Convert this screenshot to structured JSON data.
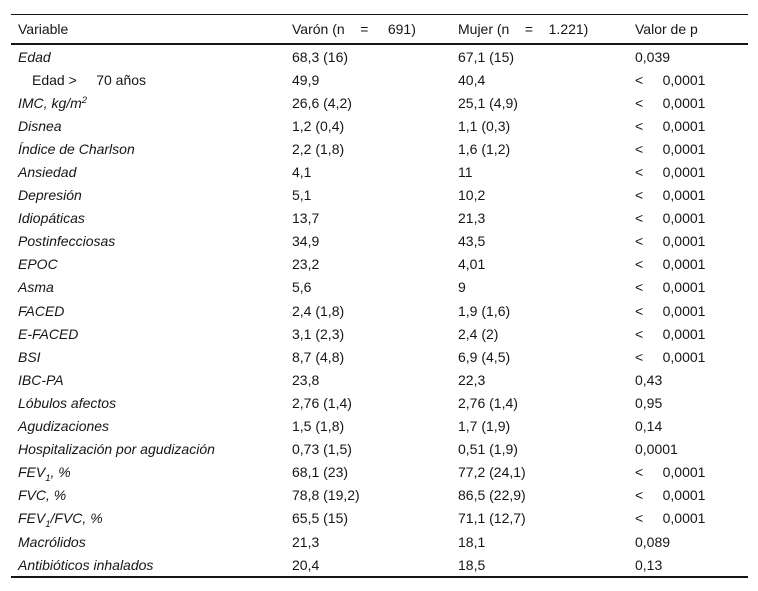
{
  "colors": {
    "ink": "#161616",
    "background": "#ffffff"
  },
  "table": {
    "columns": [
      {
        "label": "Variable"
      },
      {
        "label": "Varón (n    =     691)"
      },
      {
        "label": "Mujer (n    =    1.221)"
      },
      {
        "label": "Valor de p"
      }
    ],
    "rows": [
      {
        "segments": [
          {
            "t": "Edad"
          }
        ],
        "italic": true,
        "indent": false,
        "varon": "68,3 (16)",
        "mujer": "67,1 (15)",
        "p": "0,039"
      },
      {
        "segments": [
          {
            "t": "Edad >     70 años"
          }
        ],
        "italic": false,
        "indent": true,
        "varon": "49,9",
        "mujer": "40,4",
        "p": "<     0,0001"
      },
      {
        "segments": [
          {
            "t": "IMC, kg/m"
          },
          {
            "t": "2",
            "pos": "sup"
          }
        ],
        "italic": true,
        "indent": false,
        "varon": "26,6 (4,2)",
        "mujer": "25,1 (4,9)",
        "p": "<     0,0001"
      },
      {
        "segments": [
          {
            "t": "Disnea"
          }
        ],
        "italic": true,
        "indent": false,
        "varon": "1,2 (0,4)",
        "mujer": "1,1 (0,3)",
        "p": "<     0,0001"
      },
      {
        "segments": [
          {
            "t": "Índice de Charlson"
          }
        ],
        "italic": true,
        "indent": false,
        "varon": "2,2 (1,8)",
        "mujer": "1,6 (1,2)",
        "p": "<     0,0001"
      },
      {
        "segments": [
          {
            "t": "Ansiedad"
          }
        ],
        "italic": true,
        "indent": false,
        "varon": "4,1",
        "mujer": "11",
        "p": "<     0,0001"
      },
      {
        "segments": [
          {
            "t": "Depresión"
          }
        ],
        "italic": true,
        "indent": false,
        "varon": "5,1",
        "mujer": "10,2",
        "p": "<     0,0001"
      },
      {
        "segments": [
          {
            "t": "Idiopáticas"
          }
        ],
        "italic": true,
        "indent": false,
        "varon": "13,7",
        "mujer": "21,3",
        "p": "<     0,0001"
      },
      {
        "segments": [
          {
            "t": "Postinfecciosas"
          }
        ],
        "italic": true,
        "indent": false,
        "varon": "34,9",
        "mujer": "43,5",
        "p": "<     0,0001"
      },
      {
        "segments": [
          {
            "t": "EPOC"
          }
        ],
        "italic": true,
        "indent": false,
        "varon": "23,2",
        "mujer": "4,01",
        "p": "<     0,0001"
      },
      {
        "segments": [
          {
            "t": "Asma"
          }
        ],
        "italic": true,
        "indent": false,
        "varon": "5,6",
        "mujer": "9",
        "p": "<     0,0001"
      },
      {
        "segments": [
          {
            "t": "FACED"
          }
        ],
        "italic": true,
        "indent": false,
        "varon": "2,4 (1,8)",
        "mujer": "1,9 (1,6)",
        "p": "<     0,0001"
      },
      {
        "segments": [
          {
            "t": "E-FACED"
          }
        ],
        "italic": true,
        "indent": false,
        "varon": "3,1 (2,3)",
        "mujer": "2,4 (2)",
        "p": "<     0,0001"
      },
      {
        "segments": [
          {
            "t": "BSI"
          }
        ],
        "italic": true,
        "indent": false,
        "varon": "8,7 (4,8)",
        "mujer": "6,9 (4,5)",
        "p": "<     0,0001"
      },
      {
        "segments": [
          {
            "t": "IBC-PA"
          }
        ],
        "italic": true,
        "indent": false,
        "varon": "23,8",
        "mujer": "22,3",
        "p": "0,43"
      },
      {
        "segments": [
          {
            "t": "Lóbulos afectos"
          }
        ],
        "italic": true,
        "indent": false,
        "varon": "2,76 (1,4)",
        "mujer": "2,76 (1,4)",
        "p": "0,95"
      },
      {
        "segments": [
          {
            "t": "Agudizaciones"
          }
        ],
        "italic": true,
        "indent": false,
        "varon": "1,5 (1,8)",
        "mujer": "1,7 (1,9)",
        "p": "0,14"
      },
      {
        "segments": [
          {
            "t": "Hospitalización por agudización"
          }
        ],
        "italic": true,
        "indent": false,
        "varon": "0,73 (1,5)",
        "mujer": "0,51 (1,9)",
        "p": "0,0001"
      },
      {
        "segments": [
          {
            "t": "FEV"
          },
          {
            "t": "1",
            "pos": "sub"
          },
          {
            "t": ", %"
          }
        ],
        "italic": true,
        "indent": false,
        "varon": "68,1 (23)",
        "mujer": "77,2 (24,1)",
        "p": "<     0,0001"
      },
      {
        "segments": [
          {
            "t": "FVC, %"
          }
        ],
        "italic": true,
        "indent": false,
        "varon": "78,8 (19,2)",
        "mujer": "86,5 (22,9)",
        "p": "<     0,0001"
      },
      {
        "segments": [
          {
            "t": "FEV"
          },
          {
            "t": "1",
            "pos": "sub"
          },
          {
            "t": "/FVC, %"
          }
        ],
        "italic": true,
        "indent": false,
        "varon": "65,5 (15)",
        "mujer": "71,1 (12,7)",
        "p": "<     0,0001"
      },
      {
        "segments": [
          {
            "t": "Macrólidos"
          }
        ],
        "italic": true,
        "indent": false,
        "varon": "21,3",
        "mujer": "18,1",
        "p": "0,089"
      },
      {
        "segments": [
          {
            "t": "Antibióticos inhalados"
          }
        ],
        "italic": true,
        "indent": false,
        "varon": "20,4",
        "mujer": "18,5",
        "p": "0,13"
      }
    ]
  }
}
